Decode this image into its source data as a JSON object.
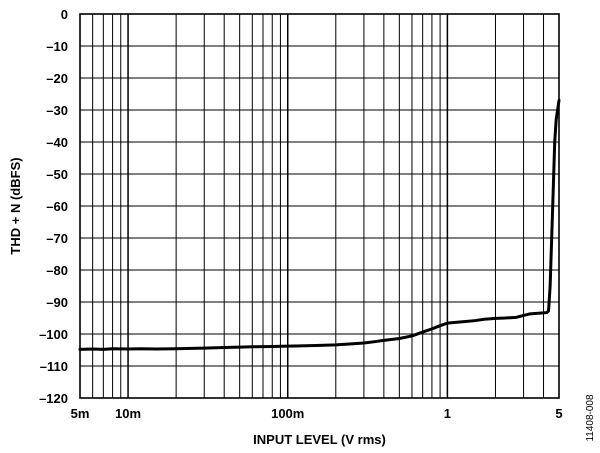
{
  "chart_data": {
    "type": "line",
    "xscale": "log",
    "xlabel": "INPUT LEVEL (V rms)",
    "ylabel": "THD + N (dBFS)",
    "xlim": [
      0.005,
      5
    ],
    "ylim": [
      -120,
      0
    ],
    "grid": true,
    "x_tick_values": [
      0.005,
      0.01,
      0.1,
      1,
      5
    ],
    "x_tick_labels": [
      "5m",
      "10m",
      "100m",
      "1",
      "5"
    ],
    "y_tick_values": [
      0,
      -10,
      -20,
      -30,
      -40,
      -50,
      -60,
      -70,
      -80,
      -90,
      -100,
      -110,
      -120
    ],
    "y_tick_labels": [
      "0",
      "–10",
      "–20",
      "–30",
      "–40",
      "–50",
      "–60",
      "–70",
      "–80",
      "–90",
      "–100",
      "–110",
      "–120"
    ],
    "series": [
      {
        "x": [
          0.005,
          0.006,
          0.007,
          0.008,
          0.01,
          0.012,
          0.015,
          0.02,
          0.025,
          0.03,
          0.04,
          0.05,
          0.06,
          0.08,
          0.1,
          0.12,
          0.15,
          0.2,
          0.25,
          0.3,
          0.35,
          0.4,
          0.5,
          0.6,
          0.7,
          0.8,
          0.9,
          1.0,
          1.1,
          1.3,
          1.5,
          1.7,
          2.0,
          2.3,
          2.7,
          3.0,
          3.3,
          3.7,
          4.0,
          4.2,
          4.3,
          4.4,
          4.5,
          4.6,
          4.7,
          4.8,
          5.0
        ],
        "y": [
          -104.8,
          -104.7,
          -104.8,
          -104.6,
          -104.7,
          -104.6,
          -104.7,
          -104.6,
          -104.5,
          -104.4,
          -104.2,
          -104.1,
          -104.0,
          -103.9,
          -103.8,
          -103.7,
          -103.6,
          -103.4,
          -103.1,
          -102.8,
          -102.4,
          -102.0,
          -101.4,
          -100.6,
          -99.4,
          -98.4,
          -97.4,
          -96.6,
          -96.4,
          -96.1,
          -95.8,
          -95.4,
          -95.1,
          -95.0,
          -94.8,
          -94.2,
          -93.7,
          -93.5,
          -93.4,
          -93.3,
          -92.8,
          -85,
          -70,
          -55,
          -40,
          -33,
          -27
        ]
      }
    ]
  },
  "figure_id": "11408-008"
}
